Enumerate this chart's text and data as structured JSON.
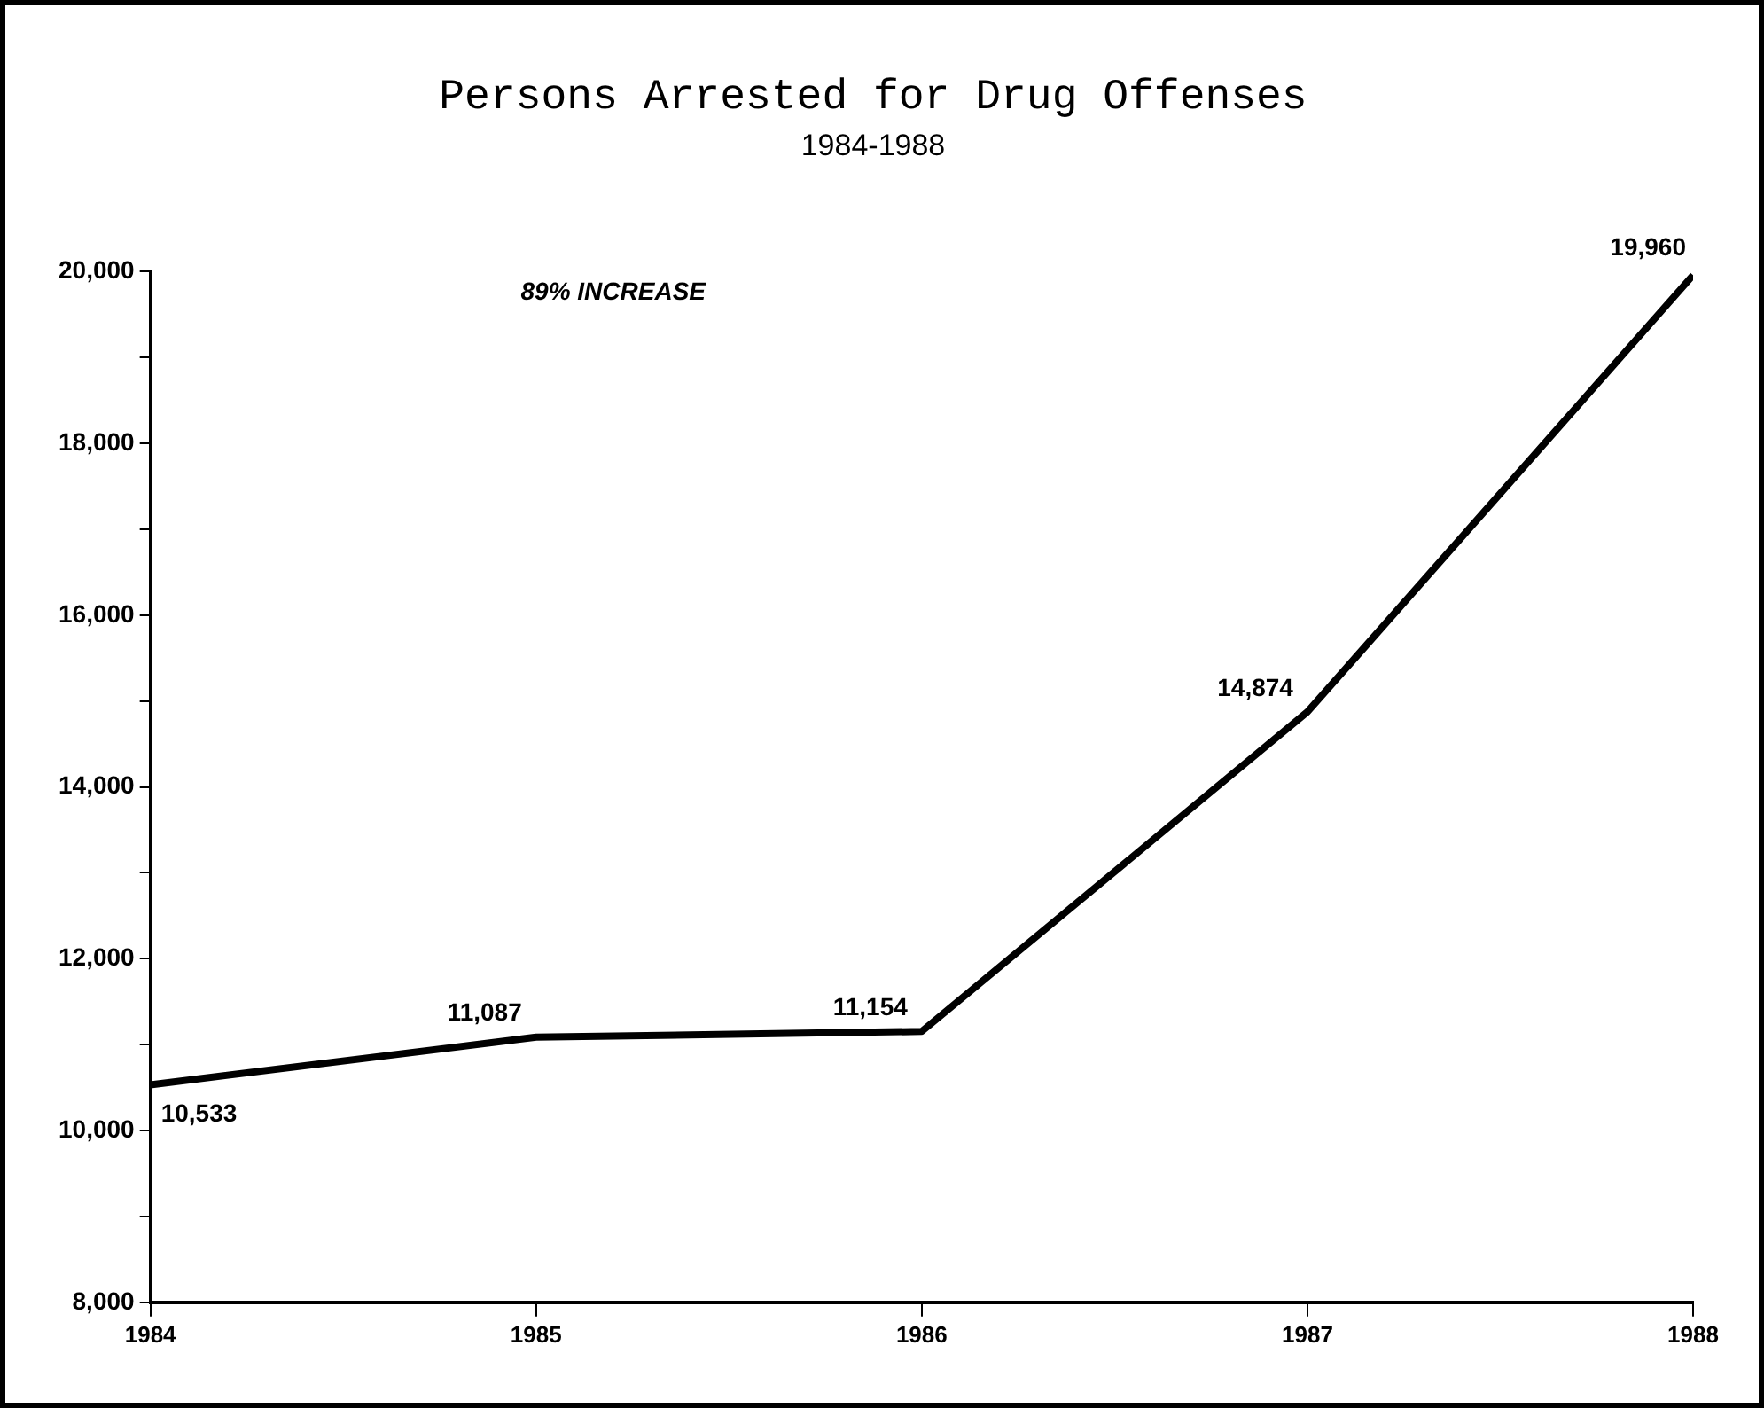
{
  "chart_data": {
    "type": "line",
    "title": "Persons Arrested for Drug Offenses",
    "subtitle": "1984-1988",
    "x": [
      1984,
      1985,
      1986,
      1987,
      1988
    ],
    "values": [
      10533,
      11087,
      11154,
      14874,
      19960
    ],
    "value_labels": [
      "10,533",
      "11,087",
      "11,154",
      "14,874",
      "19,960"
    ],
    "color": "#000000",
    "marker": "none",
    "line_style": "solid",
    "grid": false,
    "legend": false,
    "xlim": [
      1984,
      1988
    ],
    "xticks": [
      1984,
      1985,
      1986,
      1987,
      1988
    ],
    "ylim": [
      8000,
      20000
    ],
    "yticks": [
      {
        "value": 8000,
        "label": "8,000"
      },
      {
        "value": 9000,
        "label": null
      },
      {
        "value": 10000,
        "label": "10,000"
      },
      {
        "value": 11000,
        "label": null
      },
      {
        "value": 12000,
        "label": "12,000"
      },
      {
        "value": 13000,
        "label": null
      },
      {
        "value": 14000,
        "label": "14,000"
      },
      {
        "value": 15000,
        "label": null
      },
      {
        "value": 16000,
        "label": "16,000"
      },
      {
        "value": 17000,
        "label": null
      },
      {
        "value": 18000,
        "label": "18,000"
      },
      {
        "value": 19000,
        "label": null
      },
      {
        "value": 20000,
        "label": "20,000"
      }
    ],
    "annotations": [
      "89% INCREASE"
    ]
  }
}
